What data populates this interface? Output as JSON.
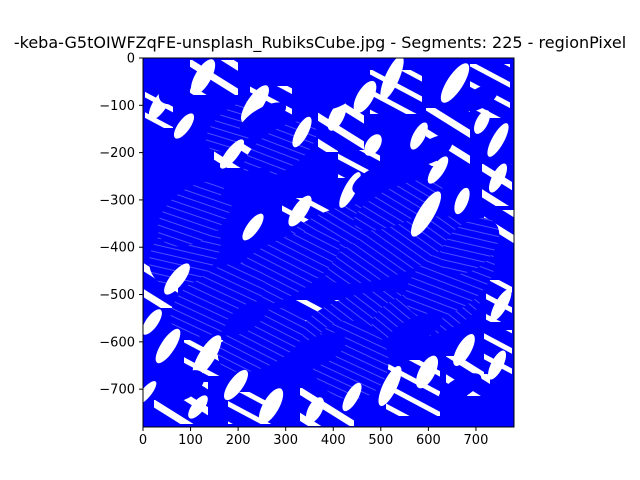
{
  "chart_data": {
    "type": "heatmap",
    "title": "-keba-G5tOIWFZqFE-unsplash_RubiksCube.jpg - Segments: 225 - regionPixel",
    "xlabel": "",
    "ylabel": "",
    "xlim": [
      0,
      780
    ],
    "ylim": [
      -780,
      0
    ],
    "x_ticks": [
      "0",
      "100",
      "200",
      "300",
      "400",
      "500",
      "600",
      "700"
    ],
    "y_ticks": [
      "0",
      "−100",
      "−200",
      "−300",
      "−400",
      "−500",
      "−600",
      "−700"
    ],
    "grid": false,
    "legend": false,
    "colors": {
      "fill": "#0000ff",
      "background": "#ffffff",
      "axes": "#000000"
    }
  }
}
